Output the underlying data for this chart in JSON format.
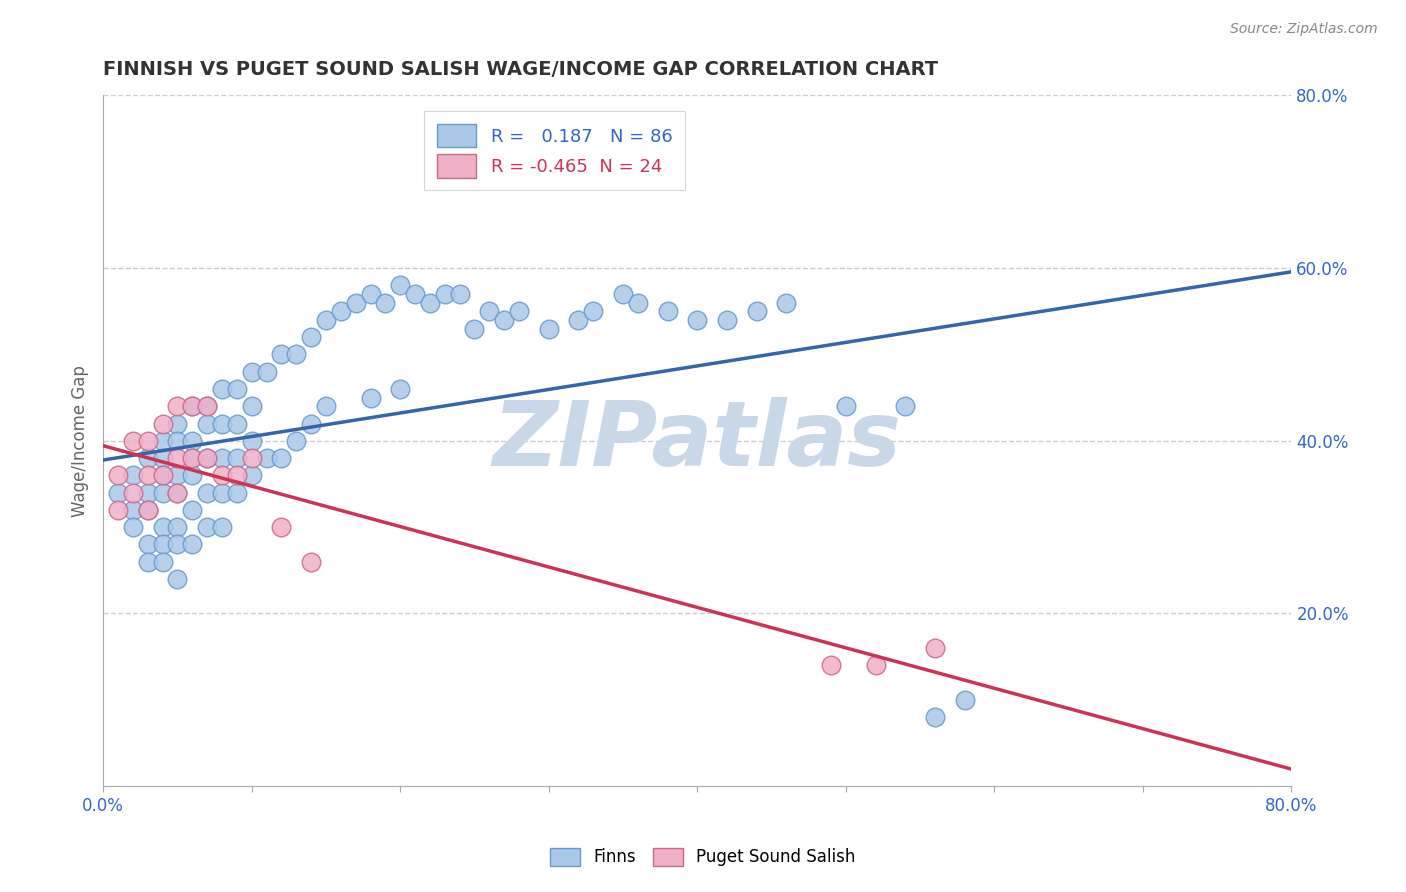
{
  "title": "FINNISH VS PUGET SOUND SALISH WAGE/INCOME GAP CORRELATION CHART",
  "source_text": "Source: ZipAtlas.com",
  "ylabel": "Wage/Income Gap",
  "xlim": [
    0.0,
    0.8
  ],
  "ylim": [
    0.0,
    0.8
  ],
  "xtick_positions": [
    0.0,
    0.1,
    0.2,
    0.3,
    0.4,
    0.5,
    0.6,
    0.7,
    0.8
  ],
  "xtick_show_labels": [
    true,
    false,
    false,
    false,
    false,
    false,
    false,
    false,
    true
  ],
  "xtick_label_values": [
    "0.0%",
    "",
    "",
    "",
    "",
    "",
    "",
    "",
    "80.0%"
  ],
  "yticks_right": [
    0.2,
    0.4,
    0.6,
    0.8
  ],
  "ytick_labels_right": [
    "20.0%",
    "40.0%",
    "60.0%",
    "80.0%"
  ],
  "grid_color": "#cccccc",
  "background_color": "#ffffff",
  "plot_bg_color": "#ffffff",
  "watermark_text": "ZIPatlas",
  "watermark_color": "#c8d8e8",
  "legend_box_color": "#ffffff",
  "legend_border_color": "#cccccc",
  "finns_color": "#aac8e8",
  "finns_edge_color": "#6699cc",
  "salish_color": "#f0b0c8",
  "salish_edge_color": "#cc6688",
  "finns_line_color": "#3366aa",
  "salish_line_color": "#cc3355",
  "finns_R": 0.187,
  "finns_N": 86,
  "salish_R": -0.465,
  "salish_N": 24,
  "legend_label_finns": "Finns",
  "legend_label_salish": "Puget Sound Salish",
  "legend_R_color": "#3366cc",
  "salish_R_color": "#cc3355",
  "finns_scatter_x": [
    0.01,
    0.02,
    0.02,
    0.02,
    0.03,
    0.03,
    0.03,
    0.03,
    0.03,
    0.04,
    0.04,
    0.04,
    0.04,
    0.04,
    0.04,
    0.04,
    0.05,
    0.05,
    0.05,
    0.05,
    0.05,
    0.05,
    0.05,
    0.06,
    0.06,
    0.06,
    0.06,
    0.06,
    0.06,
    0.07,
    0.07,
    0.07,
    0.07,
    0.07,
    0.08,
    0.08,
    0.08,
    0.08,
    0.08,
    0.09,
    0.09,
    0.09,
    0.09,
    0.1,
    0.1,
    0.1,
    0.1,
    0.11,
    0.11,
    0.12,
    0.12,
    0.13,
    0.13,
    0.14,
    0.14,
    0.15,
    0.15,
    0.16,
    0.17,
    0.18,
    0.18,
    0.19,
    0.2,
    0.2,
    0.21,
    0.22,
    0.23,
    0.24,
    0.25,
    0.26,
    0.27,
    0.28,
    0.3,
    0.32,
    0.33,
    0.35,
    0.36,
    0.38,
    0.4,
    0.42,
    0.44,
    0.46,
    0.5,
    0.54,
    0.56,
    0.58
  ],
  "finns_scatter_y": [
    0.34,
    0.36,
    0.32,
    0.3,
    0.38,
    0.34,
    0.32,
    0.28,
    0.26,
    0.4,
    0.38,
    0.36,
    0.34,
    0.3,
    0.28,
    0.26,
    0.42,
    0.4,
    0.36,
    0.34,
    0.3,
    0.28,
    0.24,
    0.44,
    0.4,
    0.38,
    0.36,
    0.32,
    0.28,
    0.44,
    0.42,
    0.38,
    0.34,
    0.3,
    0.46,
    0.42,
    0.38,
    0.34,
    0.3,
    0.46,
    0.42,
    0.38,
    0.34,
    0.48,
    0.44,
    0.4,
    0.36,
    0.48,
    0.38,
    0.5,
    0.38,
    0.5,
    0.4,
    0.52,
    0.42,
    0.54,
    0.44,
    0.55,
    0.56,
    0.57,
    0.45,
    0.56,
    0.58,
    0.46,
    0.57,
    0.56,
    0.57,
    0.57,
    0.53,
    0.55,
    0.54,
    0.55,
    0.53,
    0.54,
    0.55,
    0.57,
    0.56,
    0.55,
    0.54,
    0.54,
    0.55,
    0.56,
    0.44,
    0.44,
    0.08,
    0.1
  ],
  "salish_scatter_x": [
    0.01,
    0.01,
    0.02,
    0.02,
    0.03,
    0.03,
    0.03,
    0.04,
    0.04,
    0.05,
    0.05,
    0.05,
    0.06,
    0.06,
    0.07,
    0.07,
    0.08,
    0.09,
    0.1,
    0.12,
    0.14,
    0.49,
    0.52,
    0.56
  ],
  "salish_scatter_y": [
    0.36,
    0.32,
    0.4,
    0.34,
    0.4,
    0.36,
    0.32,
    0.42,
    0.36,
    0.44,
    0.38,
    0.34,
    0.44,
    0.38,
    0.44,
    0.38,
    0.36,
    0.36,
    0.38,
    0.3,
    0.26,
    0.14,
    0.14,
    0.16
  ]
}
